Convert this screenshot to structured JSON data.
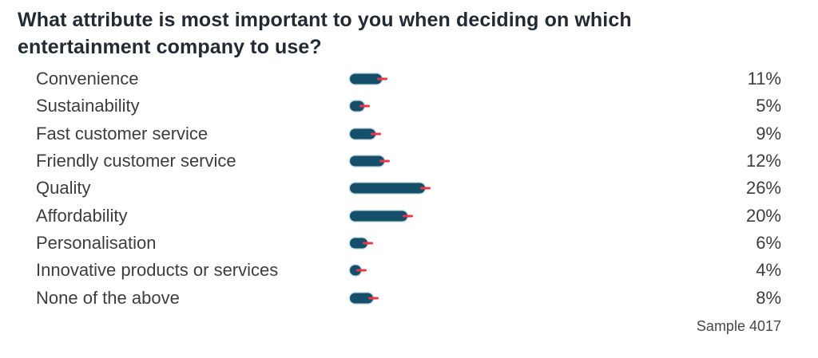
{
  "title": "What attribute is most important to you when deciding on which entertainment company to use?",
  "sample_label": "Sample 4017",
  "colors": {
    "bar": "#14506a",
    "marker": "#ed3448",
    "title_text": "#222b33",
    "label_text": "#3d3d3d",
    "background": "#ffffff"
  },
  "chart_data": {
    "type": "bar",
    "orientation": "horizontal",
    "title": "What attribute is most important to you when deciding on which entertainment company to use?",
    "categories": [
      "Convenience",
      "Sustainability",
      "Fast customer service",
      "Friendly customer service",
      "Quality",
      "Affordability",
      "Personalisation",
      "Innovative products or services",
      "None of the above"
    ],
    "values": [
      11,
      5,
      9,
      12,
      26,
      20,
      6,
      4,
      8
    ],
    "value_labels": [
      "11%",
      "5%",
      "9%",
      "12%",
      "26%",
      "20%",
      "6%",
      "4%",
      "8%"
    ],
    "xlim": [
      0,
      100
    ],
    "grid": false,
    "legend": false,
    "bar_end_marker": true,
    "annotations": [
      "Sample 4017"
    ]
  }
}
